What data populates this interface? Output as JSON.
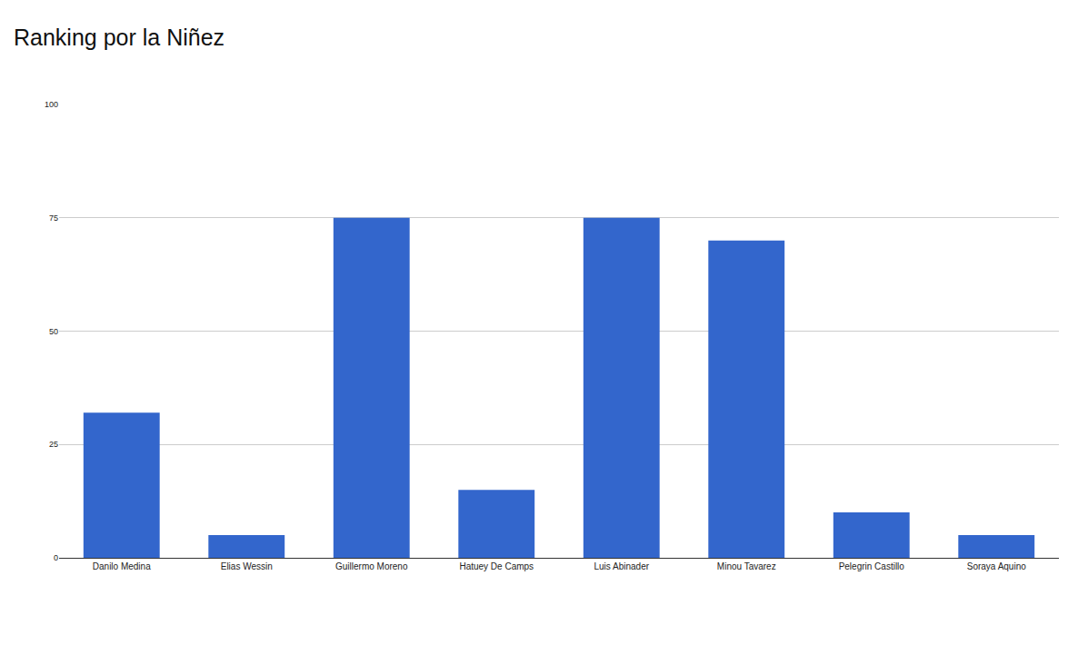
{
  "chart_data": {
    "type": "bar",
    "title": "Ranking por la Niñez",
    "categories": [
      "Danilo Medina",
      "Elias Wessin",
      "Guillermo Moreno",
      "Hatuey De Camps",
      "Luis Abinader",
      "Minou Tavarez",
      "Pelegrin Castillo",
      "Soraya Aquino"
    ],
    "values": [
      32,
      5,
      75,
      15,
      75,
      70,
      10,
      5
    ],
    "color": "#3366cc",
    "ylim": [
      0,
      100
    ],
    "yticks": [
      0,
      25,
      50,
      75,
      100
    ],
    "grid": true
  }
}
